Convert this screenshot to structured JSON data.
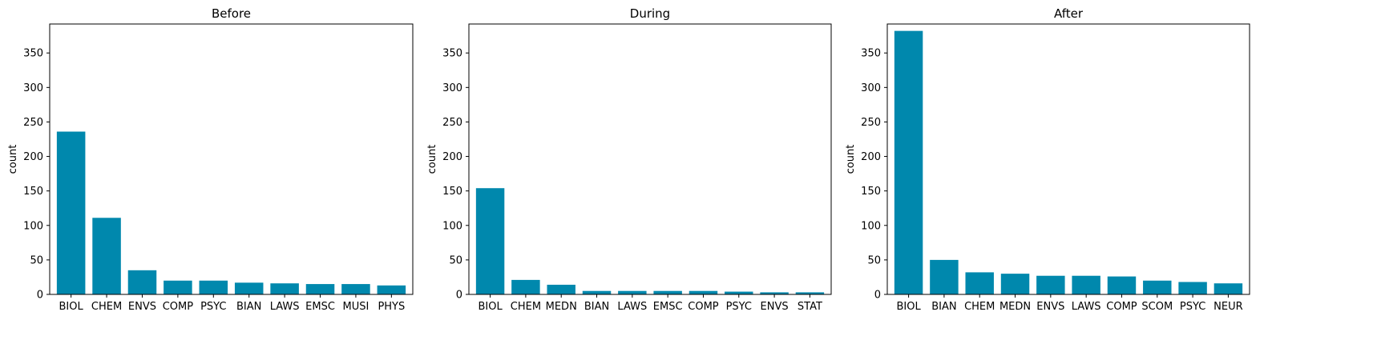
{
  "chart_data": [
    {
      "type": "bar",
      "title": "Before",
      "ylabel": "count",
      "xlabel": "",
      "ylim": [
        0,
        392
      ],
      "yticks": [
        0,
        50,
        100,
        150,
        200,
        250,
        300,
        350
      ],
      "categories": [
        "BIOL",
        "CHEM",
        "ENVS",
        "COMP",
        "PSYC",
        "BIAN",
        "LAWS",
        "EMSC",
        "MUSI",
        "PHYS"
      ],
      "values": [
        236,
        111,
        35,
        20,
        20,
        17,
        16,
        15,
        15,
        13
      ],
      "color": "#0088ad",
      "grid": false
    },
    {
      "type": "bar",
      "title": "During",
      "ylabel": "count",
      "xlabel": "",
      "ylim": [
        0,
        392
      ],
      "yticks": [
        0,
        50,
        100,
        150,
        200,
        250,
        300,
        350
      ],
      "categories": [
        "BIOL",
        "CHEM",
        "MEDN",
        "BIAN",
        "LAWS",
        "EMSC",
        "COMP",
        "PSYC",
        "ENVS",
        "STAT"
      ],
      "values": [
        154,
        21,
        14,
        5,
        5,
        5,
        5,
        4,
        3,
        3
      ],
      "color": "#0088ad",
      "grid": false
    },
    {
      "type": "bar",
      "title": "After",
      "ylabel": "count",
      "xlabel": "",
      "ylim": [
        0,
        392
      ],
      "yticks": [
        0,
        50,
        100,
        150,
        200,
        250,
        300,
        350
      ],
      "categories": [
        "BIOL",
        "BIAN",
        "CHEM",
        "MEDN",
        "ENVS",
        "LAWS",
        "COMP",
        "SCOM",
        "PSYC",
        "NEUR"
      ],
      "values": [
        382,
        50,
        32,
        30,
        27,
        27,
        26,
        20,
        18,
        16
      ],
      "color": "#0088ad",
      "grid": false
    }
  ]
}
